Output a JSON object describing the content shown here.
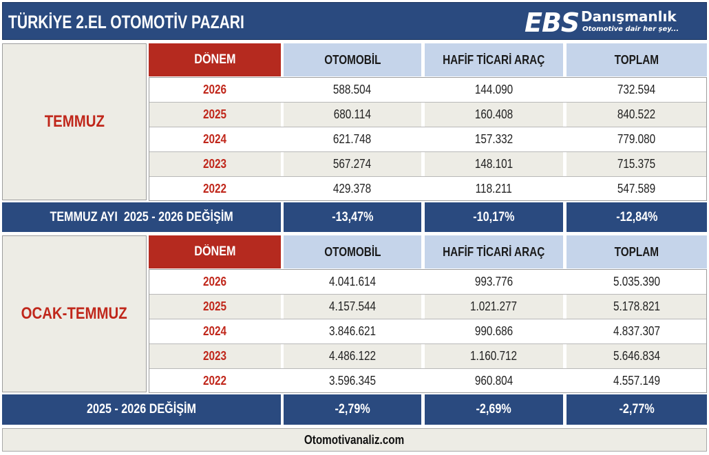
{
  "title": "TÜRKİYE 2.EL OTOMOTİV PAZARI",
  "logo": {
    "brand": "EBS",
    "name": "Danışmanlık",
    "tagline": "Otomotive dair her şey..."
  },
  "headers": {
    "period": "DÖNEM",
    "car": "OTOMOBİL",
    "lcv": "HAFİF TİCARİ ARAÇ",
    "total": "TOPLAM"
  },
  "sections": [
    {
      "label": "TEMMUZ",
      "rows": [
        {
          "year": "2026",
          "car": "588.504",
          "lcv": "144.090",
          "total": "732.594"
        },
        {
          "year": "2025",
          "car": "680.114",
          "lcv": "160.408",
          "total": "840.522"
        },
        {
          "year": "2024",
          "car": "621.748",
          "lcv": "157.332",
          "total": "779.080"
        },
        {
          "year": "2023",
          "car": "567.274",
          "lcv": "148.101",
          "total": "715.375"
        },
        {
          "year": "2022",
          "car": "429.378",
          "lcv": "118.211",
          "total": "547.589"
        }
      ],
      "change": {
        "label": "TEMMUZ AYI  2025 - 2026 DEĞİŞİM",
        "car": "-13,47%",
        "lcv": "-10,17%",
        "total": "-12,84%"
      }
    },
    {
      "label": "OCAK-TEMMUZ",
      "rows": [
        {
          "year": "2026",
          "car": "4.041.614",
          "lcv": "993.776",
          "total": "5.035.390"
        },
        {
          "year": "2025",
          "car": "4.157.544",
          "lcv": "1.021.277",
          "total": "5.178.821"
        },
        {
          "year": "2024",
          "car": "3.846.621",
          "lcv": "990.686",
          "total": "4.837.307"
        },
        {
          "year": "2023",
          "car": "4.486.122",
          "lcv": "1.160.712",
          "total": "5.646.834"
        },
        {
          "year": "2022",
          "car": "3.596.345",
          "lcv": "960.804",
          "total": "4.557.149"
        }
      ],
      "change": {
        "label": "2025 - 2026 DEĞİŞİM",
        "car": "-2,79%",
        "lcv": "-2,69%",
        "total": "-2,77%"
      }
    }
  ],
  "footer": "Otomotivanaliz.com"
}
